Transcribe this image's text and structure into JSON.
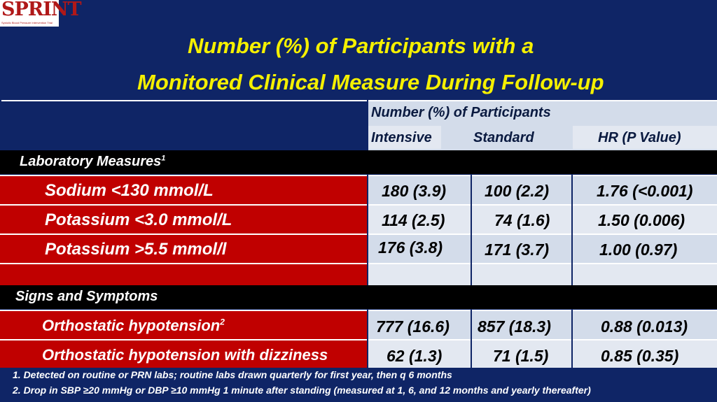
{
  "logo": {
    "text": "SPRINT",
    "subtitle": "Systolic Blood Pressure Intervention Trial"
  },
  "title": {
    "line1": "Number (%) of Participants with a",
    "line2": "Monitored Clinical Measure During Follow-up"
  },
  "table": {
    "header_span": "Number (%) of Participants",
    "columns": [
      "Intensive",
      "Standard",
      "HR (P Value)"
    ],
    "sections": [
      {
        "label": "Laboratory Measures",
        "footnote_ref": "1",
        "rows": [
          {
            "label": "Sodium <130 mmol/L",
            "ref": "",
            "intensive": "180 (3.9)",
            "standard": "100 (2.2)",
            "hr": "1.76 (<0.001)"
          },
          {
            "label": "Potassium <3.0 mmol/L",
            "ref": "",
            "intensive": "114 (2.5)",
            "standard": "74 (1.6)",
            "hr": "1.50 (0.006)"
          },
          {
            "label": "Potassium >5.5 mmol/l",
            "ref": "",
            "intensive": "176 (3.8)",
            "standard": "171 (3.7)",
            "hr": "1.00 (0.97)"
          }
        ]
      },
      {
        "label": "Signs and Symptoms",
        "footnote_ref": "",
        "rows": [
          {
            "label": "Orthostatic hypotension",
            "ref": "2",
            "intensive": "777 (16.6)",
            "standard": "857 (18.3)",
            "hr": "0.88 (0.013)"
          },
          {
            "label": "Orthostatic hypotension with dizziness",
            "ref": "",
            "intensive": "62 (1.3)",
            "standard": "71 (1.5)",
            "hr": "0.85 (0.35)"
          }
        ]
      }
    ]
  },
  "footnotes": [
    "1. Detected on routine or PRN labs; routine labs drawn quarterly for first year, then q 6 months",
    "2. Drop in SBP ≥20 mmHg or DBP ≥10 mmHg 1 minute after standing (measured at 1, 6, and 12 months and yearly thereafter)"
  ],
  "colors": {
    "background": "#0f2566",
    "title": "#f5f000",
    "row_label": "#c00000",
    "cell": "#d3dcea",
    "section_bar": "#000000"
  }
}
